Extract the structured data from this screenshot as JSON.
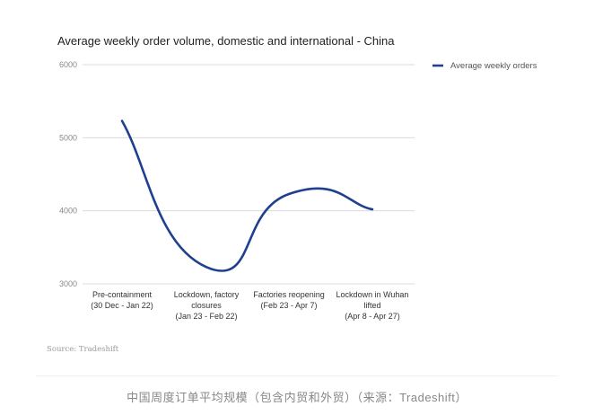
{
  "chart_data": {
    "type": "line",
    "title": "Average weekly order volume, domestic and international - China",
    "xlabel": "",
    "ylabel": "",
    "categories": [
      [
        "Pre-containment",
        "(30 Dec - Jan 22)"
      ],
      [
        "Lockdown, factory",
        "closures",
        "(Jan 23 - Feb 22)"
      ],
      [
        "Factories reopening",
        "(Feb 23 - Apr 7)"
      ],
      [
        "Lockdown in Wuhan",
        "lifted",
        "(Apr 8 - Apr 27)"
      ]
    ],
    "series": [
      {
        "name": "Average weekly orders",
        "values": [
          5230,
          3230,
          4230,
          4020
        ],
        "color": "#1f3f8f"
      }
    ],
    "ylim": [
      3000,
      6000
    ],
    "yticks": [
      3000,
      4000,
      5000,
      6000
    ],
    "grid": true,
    "legend": "right",
    "smooth": true
  },
  "source": "Source: Tradeshift",
  "caption": "中国周度订单平均规模（包含内贸和外贸）（来源：Tradeshift）"
}
